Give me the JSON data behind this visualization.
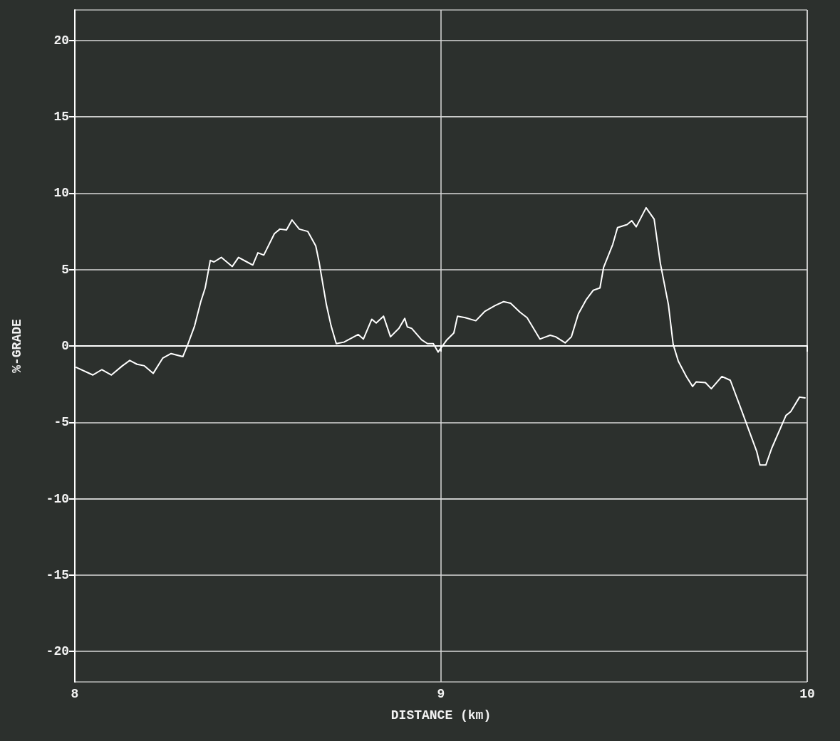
{
  "chart_data": {
    "type": "line",
    "xlabel": "DISTANCE (km)",
    "ylabel": "%-GRADE",
    "xlim": [
      8,
      10
    ],
    "ylim": [
      -22,
      22
    ],
    "xticks": [
      8,
      9,
      10
    ],
    "yticks": [
      -20,
      -15,
      -10,
      -5,
      0,
      5,
      10,
      15,
      20
    ],
    "grid": true,
    "marker": "none",
    "line_style": "solid",
    "series": [
      {
        "color": "#ffffff",
        "x": [
          8.004,
          8.049,
          8.074,
          8.1,
          8.13,
          8.15,
          8.17,
          8.19,
          8.214,
          8.24,
          8.263,
          8.295,
          8.307,
          8.327,
          8.344,
          8.356,
          8.37,
          8.38,
          8.4,
          8.43,
          8.447,
          8.47,
          8.486,
          8.5,
          8.516,
          8.545,
          8.56,
          8.578,
          8.593,
          8.613,
          8.636,
          8.658,
          8.667,
          8.687,
          8.7,
          8.714,
          8.735,
          8.774,
          8.788,
          8.811,
          8.823,
          8.843,
          8.862,
          8.885,
          8.901,
          8.908,
          8.92,
          8.947,
          8.963,
          8.979,
          8.992,
          9.016,
          9.035,
          9.045,
          9.066,
          9.095,
          9.119,
          9.148,
          9.171,
          9.19,
          9.216,
          9.235,
          9.27,
          9.298,
          9.313,
          9.339,
          9.356,
          9.375,
          9.397,
          9.416,
          9.434,
          9.444,
          9.469,
          9.482,
          9.508,
          9.521,
          9.533,
          9.56,
          9.582,
          9.599,
          9.621,
          9.634,
          9.648,
          9.67,
          9.687,
          9.697,
          9.722,
          9.738,
          9.767,
          9.79,
          9.815,
          9.862,
          9.871,
          9.887,
          9.903,
          9.942,
          9.955,
          9.979,
          9.994
        ],
        "values": [
          -1.4,
          -1.9,
          -1.55,
          -1.9,
          -1.3,
          -0.95,
          -1.2,
          -1.3,
          -1.8,
          -0.8,
          -0.5,
          -0.7,
          0,
          1.3,
          2.9,
          3.8,
          5.6,
          5.5,
          5.8,
          5.2,
          5.8,
          5.5,
          5.3,
          6.1,
          5.95,
          7.35,
          7.65,
          7.6,
          8.25,
          7.65,
          7.5,
          6.55,
          5.5,
          2.7,
          1.3,
          0.15,
          0.25,
          0.75,
          0.45,
          1.75,
          1.5,
          1.95,
          0.6,
          1.15,
          1.8,
          1.25,
          1.15,
          0.4,
          0.15,
          0.15,
          -0.4,
          0.4,
          0.85,
          1.95,
          1.85,
          1.65,
          2.25,
          2.65,
          2.9,
          2.8,
          2.2,
          1.85,
          0.45,
          0.7,
          0.6,
          0.2,
          0.6,
          2.1,
          3.05,
          3.65,
          3.8,
          5.15,
          6.65,
          7.75,
          7.95,
          8.2,
          7.8,
          9.05,
          8.3,
          5.4,
          2.7,
          0.1,
          -1.0,
          -2.0,
          -2.65,
          -2.35,
          -2.4,
          -2.8,
          -2.0,
          -2.25,
          -3.85,
          -6.9,
          -7.8,
          -7.8,
          -6.7,
          -4.55,
          -4.3,
          -3.35,
          -3.4
        ]
      }
    ]
  }
}
